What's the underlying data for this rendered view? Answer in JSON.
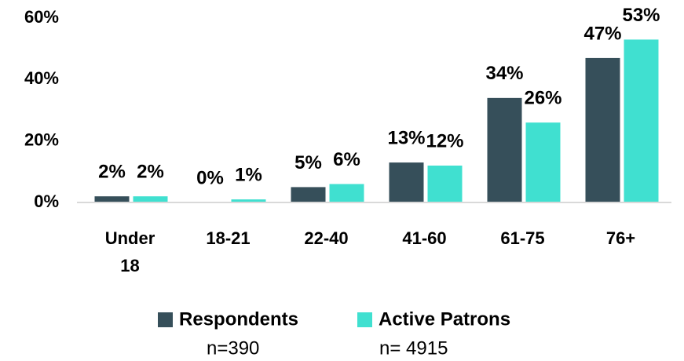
{
  "chart_data": {
    "type": "bar",
    "categories": [
      "Under 18",
      "18-21",
      "22-40",
      "41-60",
      "61-75",
      "76+"
    ],
    "series": [
      {
        "name": "Respondents",
        "n": "n=390",
        "color": "#364f5a",
        "values": [
          2,
          0,
          5,
          13,
          34,
          47
        ],
        "value_labels": [
          "2%",
          "0%",
          "5%",
          "13%",
          "34%",
          "47%"
        ]
      },
      {
        "name": "Active Patrons",
        "n": "n= 4915",
        "color": "#40e0d0",
        "values": [
          2,
          1,
          6,
          12,
          26,
          53
        ],
        "value_labels": [
          "2%",
          "1%",
          "6%",
          "12%",
          "26%",
          "53%"
        ]
      }
    ],
    "ylim": [
      0,
      60
    ],
    "yticks": [
      {
        "value": 0,
        "label": "0%"
      },
      {
        "value": 20,
        "label": "20%"
      },
      {
        "value": 40,
        "label": "40%"
      },
      {
        "value": 60,
        "label": "60%"
      }
    ],
    "grid": false,
    "legend": "bottom"
  }
}
